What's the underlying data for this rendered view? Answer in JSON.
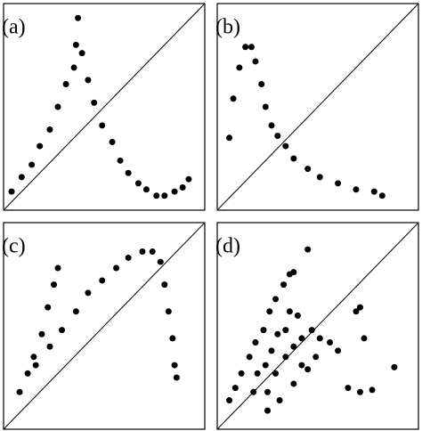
{
  "chart_data": [
    {
      "type": "scatter",
      "label": "(a)",
      "color": "#000000",
      "xlim": [
        0,
        1
      ],
      "ylim": [
        0,
        1
      ],
      "x": [
        0.04,
        0.09,
        0.14,
        0.18,
        0.23,
        0.27,
        0.31,
        0.35,
        0.36,
        0.37,
        0.39,
        0.42,
        0.45,
        0.49,
        0.54,
        0.58,
        0.62,
        0.67,
        0.71,
        0.76,
        0.8,
        0.85,
        0.89,
        0.92
      ],
      "y": [
        0.09,
        0.16,
        0.22,
        0.31,
        0.39,
        0.5,
        0.61,
        0.69,
        0.8,
        0.93,
        0.76,
        0.63,
        0.52,
        0.41,
        0.33,
        0.24,
        0.18,
        0.13,
        0.1,
        0.07,
        0.07,
        0.09,
        0.11,
        0.15
      ]
    },
    {
      "type": "scatter",
      "label": "(b)",
      "color": "#000000",
      "xlim": [
        0,
        1
      ],
      "ylim": [
        0,
        1
      ],
      "x": [
        0.06,
        0.08,
        0.11,
        0.14,
        0.17,
        0.19,
        0.22,
        0.24,
        0.27,
        0.3,
        0.34,
        0.38,
        0.45,
        0.51,
        0.6,
        0.69,
        0.78,
        0.82
      ],
      "y": [
        0.35,
        0.54,
        0.69,
        0.79,
        0.79,
        0.72,
        0.61,
        0.5,
        0.41,
        0.36,
        0.31,
        0.25,
        0.2,
        0.16,
        0.13,
        0.1,
        0.09,
        0.07
      ]
    },
    {
      "type": "scatter",
      "label": "(c)",
      "color": "#000000",
      "xlim": [
        0,
        1
      ],
      "ylim": [
        0,
        1
      ],
      "x": [
        0.08,
        0.12,
        0.15,
        0.19,
        0.22,
        0.25,
        0.27,
        0.16,
        0.23,
        0.29,
        0.36,
        0.42,
        0.49,
        0.56,
        0.62,
        0.69,
        0.74,
        0.78,
        0.8,
        0.82,
        0.84,
        0.85,
        0.86
      ],
      "y": [
        0.18,
        0.27,
        0.35,
        0.46,
        0.59,
        0.7,
        0.78,
        0.31,
        0.4,
        0.48,
        0.57,
        0.66,
        0.72,
        0.78,
        0.83,
        0.86,
        0.86,
        0.81,
        0.7,
        0.57,
        0.44,
        0.31,
        0.25
      ]
    },
    {
      "type": "scatter",
      "label": "(d)",
      "color": "#000000",
      "xlim": [
        0,
        1
      ],
      "ylim": [
        0,
        1
      ],
      "x": [
        0.06,
        0.09,
        0.12,
        0.16,
        0.19,
        0.23,
        0.26,
        0.29,
        0.33,
        0.36,
        0.38,
        0.45,
        0.25,
        0.29,
        0.34,
        0.38,
        0.42,
        0.47,
        0.51,
        0.56,
        0.6,
        0.25,
        0.31,
        0.38,
        0.45,
        0.49,
        0.2,
        0.27,
        0.34,
        0.4,
        0.3,
        0.36,
        0.24,
        0.69,
        0.71,
        0.73,
        0.88,
        0.65,
        0.71,
        0.77,
        0.18,
        0.42
      ],
      "y": [
        0.14,
        0.2,
        0.27,
        0.35,
        0.42,
        0.48,
        0.57,
        0.63,
        0.7,
        0.75,
        0.76,
        0.87,
        0.18,
        0.27,
        0.35,
        0.4,
        0.44,
        0.48,
        0.44,
        0.42,
        0.38,
        0.09,
        0.14,
        0.22,
        0.29,
        0.35,
        0.27,
        0.38,
        0.48,
        0.55,
        0.46,
        0.57,
        0.31,
        0.57,
        0.59,
        0.44,
        0.3,
        0.2,
        0.18,
        0.19,
        0.18,
        0.31
      ]
    }
  ]
}
